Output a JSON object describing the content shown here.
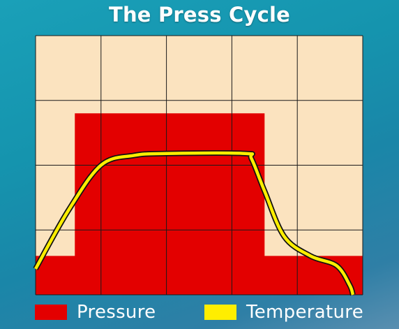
{
  "title": "The Press Cycle",
  "chart_data": {
    "type": "area",
    "title": "The Press Cycle",
    "xlabel": "",
    "ylabel": "",
    "xlim": [
      0,
      5
    ],
    "ylim": [
      0,
      4
    ],
    "grid": true,
    "legend_placement": "bottom",
    "series": [
      {
        "name": "Pressure",
        "color": "#e30000",
        "style": "step-area",
        "x": [
          0,
          0.6,
          0.6,
          3.5,
          3.5,
          5
        ],
        "y": [
          0.6,
          0.6,
          2.8,
          2.8,
          0.6,
          0.6
        ]
      },
      {
        "name": "Temperature",
        "color": "#ffee00",
        "style": "line",
        "x": [
          0,
          0.5,
          1.0,
          1.5,
          2.0,
          3.2,
          3.3,
          3.5,
          3.8,
          4.2,
          4.6,
          4.8,
          4.85
        ],
        "y": [
          0.4,
          1.3,
          2.0,
          2.15,
          2.18,
          2.18,
          2.1,
          1.6,
          0.9,
          0.6,
          0.45,
          0.15,
          0
        ]
      }
    ]
  },
  "colors": {
    "plot_background": "#fbe3bf",
    "grid": "#1a1a1a",
    "temperature_outline": "#111111"
  }
}
